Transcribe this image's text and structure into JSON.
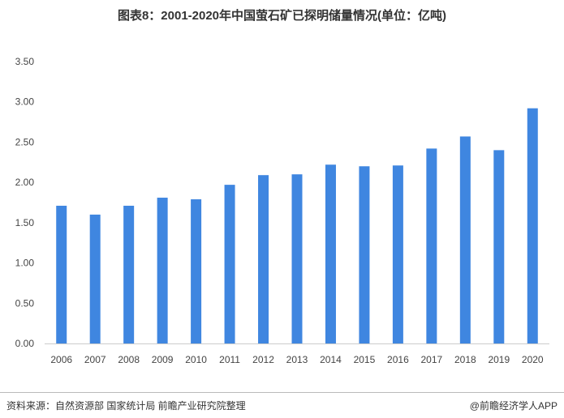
{
  "chart_data": {
    "type": "bar",
    "title": "图表8：2001-2020年中国萤石矿已探明储量情况(单位：亿吨)",
    "categories": [
      "2006",
      "2007",
      "2008",
      "2009",
      "2010",
      "2011",
      "2012",
      "2013",
      "2014",
      "2015",
      "2016",
      "2017",
      "2018",
      "2019",
      "2020"
    ],
    "values": [
      1.71,
      1.6,
      1.71,
      1.81,
      1.79,
      1.97,
      2.09,
      2.1,
      2.22,
      2.2,
      2.21,
      2.42,
      2.57,
      2.4,
      2.92
    ],
    "ylim": [
      0,
      3.5
    ],
    "yticks": [
      "0.00",
      "0.50",
      "1.00",
      "1.50",
      "2.00",
      "2.50",
      "3.00",
      "3.50"
    ],
    "grid": false,
    "bar_color": "#3f86e0"
  },
  "footer": {
    "source": "资料来源：自然资源部 国家统计局 前瞻产业研究院整理",
    "brand": "@前瞻经济学人APP"
  }
}
